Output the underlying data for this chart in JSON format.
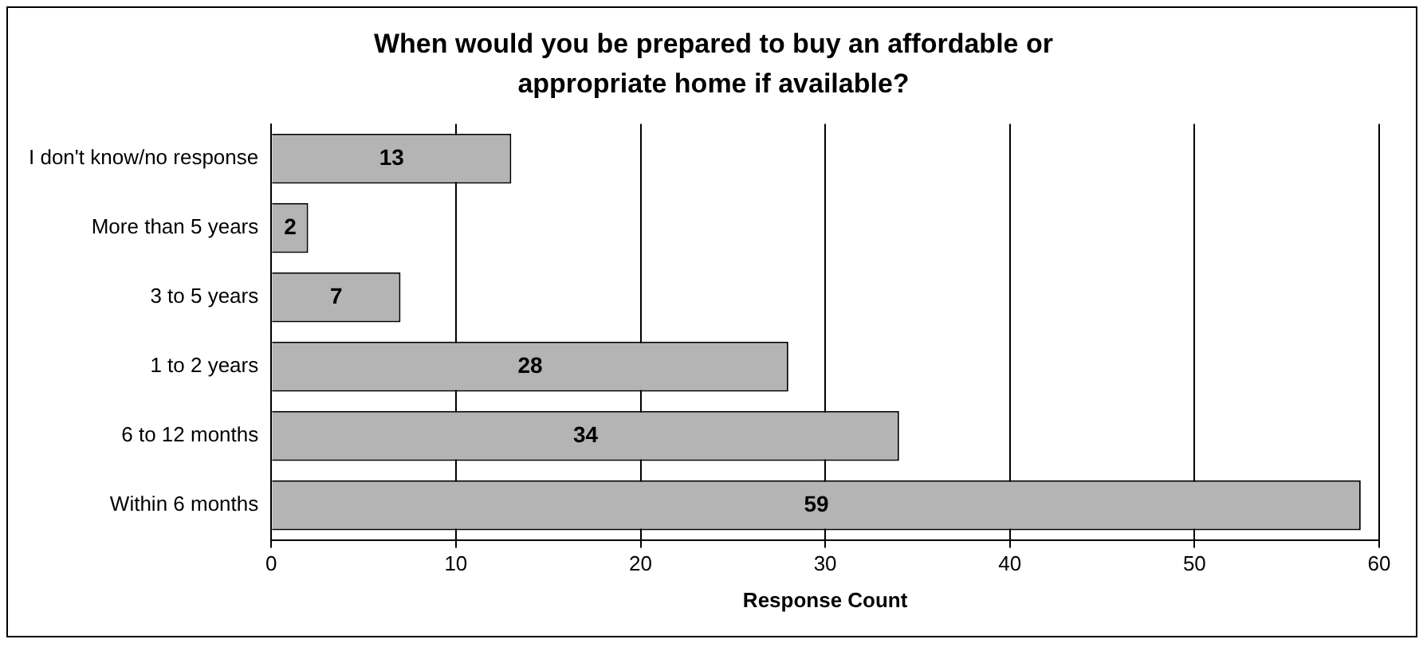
{
  "chart_data": {
    "type": "bar",
    "orientation": "horizontal",
    "title": "When would you be prepared to buy an affordable or appropriate home if available?",
    "xlabel": "Response Count",
    "categories": [
      "I don't know/no response",
      "More than 5 years",
      "3 to 5 years",
      "1 to 2 years",
      "6 to 12 months",
      "Within 6 months"
    ],
    "values": [
      13,
      2,
      7,
      28,
      34,
      59
    ],
    "color": "#b4b4b4",
    "xlim": [
      0,
      60
    ],
    "xticks": [
      0,
      10,
      20,
      30,
      40,
      50,
      60
    ],
    "grid": "x",
    "legend": false,
    "data_labels": true
  }
}
